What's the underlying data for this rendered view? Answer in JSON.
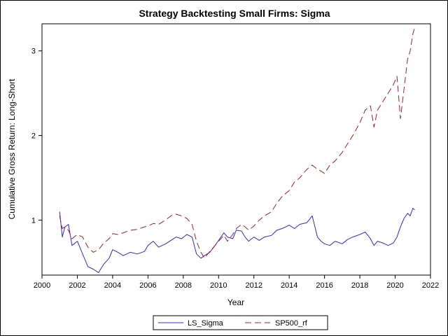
{
  "chart_data": {
    "type": "line",
    "title": "Strategy Backtesting Small Firms: Sigma",
    "xlabel": "Year",
    "ylabel": "Cumulative Gross Return: Long-Short",
    "xlim": [
      2000,
      2022
    ],
    "ylim": [
      0.35,
      3.32
    ],
    "x_ticks": [
      2000,
      2002,
      2004,
      2006,
      2008,
      2010,
      2012,
      2014,
      2016,
      2018,
      2020,
      2022
    ],
    "y_ticks": [
      1,
      2,
      3
    ],
    "grid": false,
    "legend_position": "bottom-center",
    "series": [
      {
        "name": "LS_Sigma",
        "color": "#2b2bd9",
        "style": "solid",
        "points": [
          [
            2001.0,
            1.1
          ],
          [
            2001.15,
            0.8
          ],
          [
            2001.3,
            0.92
          ],
          [
            2001.5,
            0.95
          ],
          [
            2001.7,
            0.7
          ],
          [
            2002.0,
            0.75
          ],
          [
            2002.3,
            0.6
          ],
          [
            2002.6,
            0.45
          ],
          [
            2002.9,
            0.42
          ],
          [
            2003.2,
            0.38
          ],
          [
            2003.5,
            0.48
          ],
          [
            2003.8,
            0.55
          ],
          [
            2004.0,
            0.65
          ],
          [
            2004.3,
            0.62
          ],
          [
            2004.6,
            0.58
          ],
          [
            2005.0,
            0.62
          ],
          [
            2005.4,
            0.6
          ],
          [
            2005.8,
            0.63
          ],
          [
            2006.0,
            0.7
          ],
          [
            2006.3,
            0.75
          ],
          [
            2006.6,
            0.68
          ],
          [
            2007.0,
            0.72
          ],
          [
            2007.3,
            0.76
          ],
          [
            2007.6,
            0.8
          ],
          [
            2007.9,
            0.78
          ],
          [
            2008.2,
            0.83
          ],
          [
            2008.5,
            0.8
          ],
          [
            2008.75,
            0.6
          ],
          [
            2009.0,
            0.55
          ],
          [
            2009.2,
            0.58
          ],
          [
            2009.5,
            0.62
          ],
          [
            2009.8,
            0.7
          ],
          [
            2010.0,
            0.76
          ],
          [
            2010.3,
            0.85
          ],
          [
            2010.5,
            0.8
          ],
          [
            2010.8,
            0.78
          ],
          [
            2011.0,
            0.88
          ],
          [
            2011.3,
            0.87
          ],
          [
            2011.5,
            0.8
          ],
          [
            2011.7,
            0.75
          ],
          [
            2012.0,
            0.8
          ],
          [
            2012.3,
            0.76
          ],
          [
            2012.6,
            0.8
          ],
          [
            2013.0,
            0.82
          ],
          [
            2013.3,
            0.88
          ],
          [
            2013.6,
            0.9
          ],
          [
            2014.0,
            0.94
          ],
          [
            2014.3,
            0.9
          ],
          [
            2014.6,
            0.95
          ],
          [
            2015.0,
            0.97
          ],
          [
            2015.3,
            1.05
          ],
          [
            2015.6,
            0.8
          ],
          [
            2015.8,
            0.75
          ],
          [
            2016.0,
            0.72
          ],
          [
            2016.3,
            0.7
          ],
          [
            2016.6,
            0.75
          ],
          [
            2017.0,
            0.72
          ],
          [
            2017.3,
            0.77
          ],
          [
            2017.6,
            0.8
          ],
          [
            2018.0,
            0.83
          ],
          [
            2018.3,
            0.86
          ],
          [
            2018.6,
            0.78
          ],
          [
            2018.8,
            0.7
          ],
          [
            2019.0,
            0.75
          ],
          [
            2019.3,
            0.73
          ],
          [
            2019.6,
            0.7
          ],
          [
            2019.9,
            0.73
          ],
          [
            2020.1,
            0.8
          ],
          [
            2020.3,
            0.92
          ],
          [
            2020.5,
            1.02
          ],
          [
            2020.7,
            1.08
          ],
          [
            2020.85,
            1.05
          ],
          [
            2021.0,
            1.14
          ],
          [
            2021.1,
            1.12
          ]
        ]
      },
      {
        "name": "SP500_rf",
        "color": "#a51e22",
        "style": "dashed",
        "points": [
          [
            2001.0,
            1.05
          ],
          [
            2001.15,
            0.9
          ],
          [
            2001.3,
            0.92
          ],
          [
            2001.5,
            0.88
          ],
          [
            2001.7,
            0.78
          ],
          [
            2002.0,
            0.83
          ],
          [
            2002.3,
            0.8
          ],
          [
            2002.6,
            0.68
          ],
          [
            2002.9,
            0.62
          ],
          [
            2003.2,
            0.65
          ],
          [
            2003.5,
            0.73
          ],
          [
            2003.8,
            0.78
          ],
          [
            2004.0,
            0.84
          ],
          [
            2004.3,
            0.83
          ],
          [
            2004.6,
            0.85
          ],
          [
            2005.0,
            0.88
          ],
          [
            2005.4,
            0.89
          ],
          [
            2005.8,
            0.92
          ],
          [
            2006.0,
            0.93
          ],
          [
            2006.3,
            0.96
          ],
          [
            2006.6,
            0.95
          ],
          [
            2007.0,
            1.0
          ],
          [
            2007.3,
            1.05
          ],
          [
            2007.6,
            1.07
          ],
          [
            2007.9,
            1.05
          ],
          [
            2008.2,
            1.02
          ],
          [
            2008.5,
            0.95
          ],
          [
            2008.75,
            0.75
          ],
          [
            2009.0,
            0.62
          ],
          [
            2009.2,
            0.55
          ],
          [
            2009.5,
            0.63
          ],
          [
            2009.8,
            0.7
          ],
          [
            2010.0,
            0.75
          ],
          [
            2010.3,
            0.82
          ],
          [
            2010.5,
            0.75
          ],
          [
            2010.8,
            0.83
          ],
          [
            2011.0,
            0.9
          ],
          [
            2011.3,
            0.95
          ],
          [
            2011.5,
            0.92
          ],
          [
            2011.7,
            0.88
          ],
          [
            2012.0,
            0.93
          ],
          [
            2012.3,
            1.0
          ],
          [
            2012.6,
            1.05
          ],
          [
            2013.0,
            1.1
          ],
          [
            2013.3,
            1.2
          ],
          [
            2013.6,
            1.28
          ],
          [
            2014.0,
            1.35
          ],
          [
            2014.3,
            1.45
          ],
          [
            2014.6,
            1.5
          ],
          [
            2015.0,
            1.6
          ],
          [
            2015.3,
            1.65
          ],
          [
            2015.6,
            1.6
          ],
          [
            2015.8,
            1.58
          ],
          [
            2016.0,
            1.55
          ],
          [
            2016.3,
            1.65
          ],
          [
            2016.6,
            1.7
          ],
          [
            2017.0,
            1.8
          ],
          [
            2017.3,
            1.9
          ],
          [
            2017.6,
            2.0
          ],
          [
            2018.0,
            2.15
          ],
          [
            2018.3,
            2.3
          ],
          [
            2018.6,
            2.35
          ],
          [
            2018.8,
            2.1
          ],
          [
            2019.0,
            2.3
          ],
          [
            2019.3,
            2.4
          ],
          [
            2019.6,
            2.5
          ],
          [
            2019.9,
            2.6
          ],
          [
            2020.1,
            2.7
          ],
          [
            2020.3,
            2.2
          ],
          [
            2020.5,
            2.55
          ],
          [
            2020.7,
            2.9
          ],
          [
            2020.85,
            3.0
          ],
          [
            2021.0,
            3.2
          ],
          [
            2021.1,
            3.27
          ]
        ]
      }
    ]
  }
}
